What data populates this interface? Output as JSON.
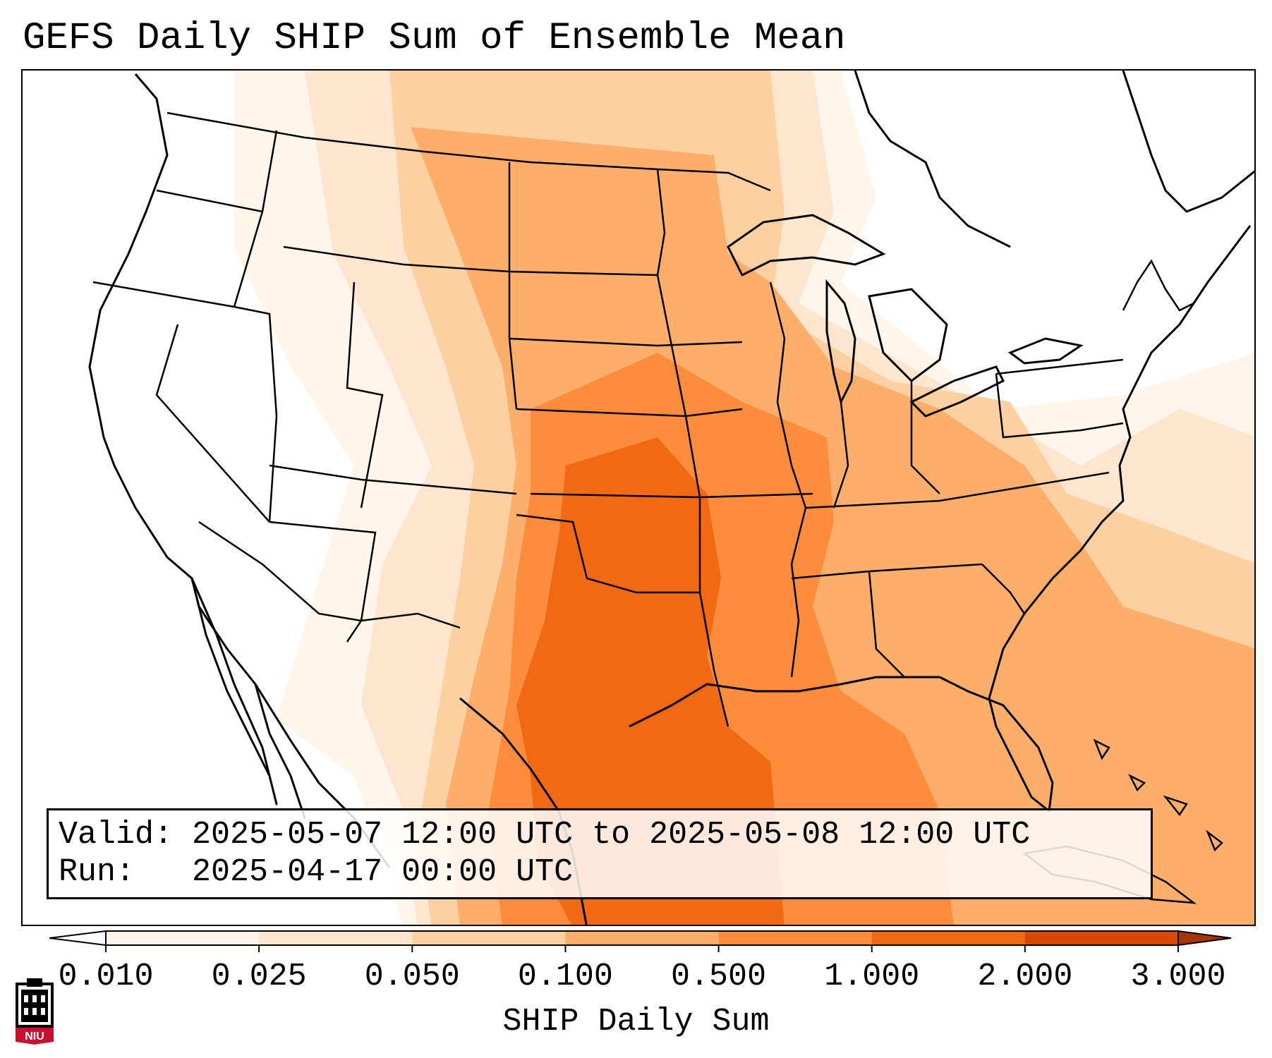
{
  "title": "GEFS Daily SHIP Sum of Ensemble Mean",
  "info": {
    "valid_label": "Valid:",
    "valid_value": "2025-05-07 12:00 UTC to 2025-05-08 12:00 UTC",
    "run_label": "Run:",
    "run_value": "2025-04-17 00:00 UTC"
  },
  "colorbar": {
    "label": "SHIP Daily Sum",
    "ticks": [
      "0.010",
      "0.025",
      "0.050",
      "0.100",
      "0.500",
      "1.000",
      "2.000",
      "3.000"
    ],
    "colors": [
      "#fff5eb",
      "#fee6ce",
      "#fdd0a2",
      "#fdae6b",
      "#fd8d3c",
      "#f16913",
      "#d94801",
      "#a63603"
    ]
  },
  "logo": {
    "text": "NIU",
    "color": "#c8102e"
  }
}
